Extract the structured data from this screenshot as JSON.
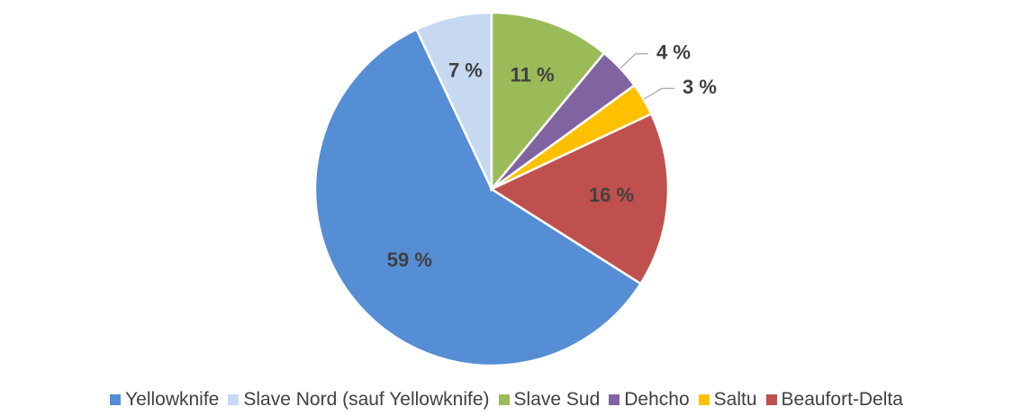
{
  "chart_data": {
    "type": "pie",
    "categories": [
      "Yellowknife",
      "Slave Nord (sauf Yellowknife)",
      "Slave Sud",
      "Dehcho",
      "Saltu",
      "Beaufort-Delta"
    ],
    "values": [
      59,
      7,
      11,
      4,
      3,
      16
    ],
    "value_labels": [
      "59 %",
      "7 %",
      "11 %",
      "4 %",
      "3 %",
      "16 %"
    ],
    "colors": [
      "#558ed5",
      "#c6d9f1",
      "#9bbb59",
      "#8064a2",
      "#ffc000",
      "#c0504d"
    ],
    "start_angle": 122.4,
    "legend": "bottom"
  }
}
